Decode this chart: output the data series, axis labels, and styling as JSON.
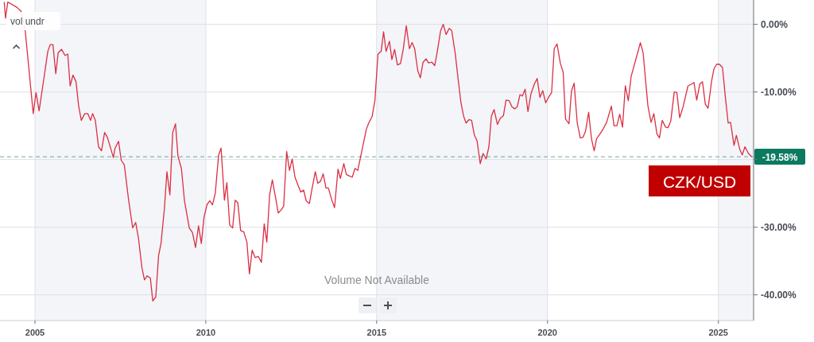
{
  "chart_data": {
    "type": "line",
    "x": [
      "2004-02-07",
      "2004-02-21",
      "2004-03-16",
      "2004-04-28",
      "2004-06-24",
      "2004-08-07",
      "2004-09-20",
      "2004-10-28",
      "2004-12-13",
      "2005-01-12",
      "2005-02-14",
      "2005-04-05",
      "2005-05-18",
      "2005-06-13",
      "2005-07-12",
      "2005-08-11",
      "2005-09-06",
      "2005-10-12",
      "2005-11-18",
      "2005-12-17",
      "2006-01-12",
      "2006-02-11",
      "2006-03-16",
      "2006-04-12",
      "2006-05-11",
      "2006-06-17",
      "2006-07-19",
      "2006-08-18",
      "2006-09-09",
      "2006-10-08",
      "2006-11-11",
      "2006-12-13",
      "2007-01-15",
      "2007-02-14",
      "2007-04-19",
      "2007-05-07",
      "2007-06-13",
      "2007-07-12",
      "2007-08-14",
      "2007-09-27",
      "2007-11-11",
      "2007-12-13",
      "2008-01-12",
      "2008-02-18",
      "2008-03-16",
      "2008-04-12",
      "2008-05-18",
      "2008-06-13",
      "2008-07-15",
      "2008-08-14",
      "2008-09-09",
      "2008-10-15",
      "2008-11-11",
      "2008-12-13",
      "2009-01-12",
      "2009-02-11",
      "2009-03-09",
      "2009-04-15",
      "2009-05-18",
      "2009-07-08",
      "2009-08-11",
      "2009-09-13",
      "2009-10-15",
      "2009-11-14",
      "2009-12-13",
      "2010-01-15",
      "2010-02-14",
      "2010-03-13",
      "2010-04-12",
      "2010-05-18",
      "2010-06-13",
      "2010-07-19",
      "2010-08-14",
      "2010-09-13",
      "2010-10-15",
      "2010-11-11",
      "2010-12-09",
      "2011-01-08",
      "2011-02-11",
      "2011-03-16",
      "2011-04-12",
      "2011-05-11",
      "2011-06-13",
      "2011-07-15",
      "2011-08-18",
      "2011-09-17",
      "2011-10-15",
      "2011-11-14",
      "2011-12-13",
      "2012-01-15",
      "2012-02-14",
      "2012-03-13",
      "2012-04-12",
      "2012-05-14",
      "2012-06-13",
      "2012-07-12",
      "2012-08-11",
      "2012-09-13",
      "2012-10-12",
      "2012-11-11",
      "2012-12-09",
      "2013-01-12",
      "2013-02-11",
      "2013-03-16",
      "2013-04-12",
      "2013-05-11",
      "2013-06-09",
      "2013-07-08",
      "2013-08-03",
      "2013-09-09",
      "2013-10-08",
      "2013-11-14",
      "2013-12-09",
      "2014-01-15",
      "2014-02-11",
      "2014-03-13",
      "2014-04-15",
      "2014-05-14",
      "2014-06-13",
      "2014-07-15",
      "2014-08-14",
      "2014-09-13",
      "2014-10-08",
      "2014-11-14",
      "2014-12-13",
      "2015-01-15",
      "2015-02-18",
      "2015-03-16",
      "2015-04-12",
      "2015-05-18",
      "2015-06-13",
      "2015-07-12",
      "2015-08-11",
      "2015-09-13",
      "2015-10-12",
      "2015-11-14",
      "2015-12-17",
      "2016-01-15",
      "2016-02-11",
      "2016-03-16",
      "2016-04-12",
      "2016-05-11",
      "2016-06-13",
      "2016-07-08",
      "2016-08-14",
      "2016-09-13",
      "2016-10-08",
      "2016-11-14",
      "2016-12-13",
      "2017-01-12",
      "2017-02-14",
      "2017-03-13",
      "2017-04-19",
      "2017-05-21",
      "2017-06-20",
      "2017-07-19",
      "2017-08-14",
      "2017-09-13",
      "2017-10-12",
      "2017-11-11",
      "2017-12-09",
      "2018-01-12",
      "2018-02-11",
      "2018-03-16",
      "2018-04-15",
      "2018-05-11",
      "2018-06-09",
      "2018-07-15",
      "2018-08-14",
      "2018-09-17",
      "2018-10-15",
      "2018-11-18",
      "2018-12-17",
      "2019-01-15",
      "2019-02-11",
      "2019-03-13",
      "2019-04-08",
      "2019-05-07",
      "2019-06-06",
      "2019-07-08",
      "2019-08-14",
      "2019-09-13",
      "2019-10-12",
      "2019-11-11",
      "2019-12-13",
      "2020-01-12",
      "2020-02-14",
      "2020-03-13",
      "2020-04-12",
      "2020-05-18",
      "2020-06-17",
      "2020-07-12",
      "2020-08-18",
      "2020-09-13",
      "2020-10-12",
      "2020-11-14",
      "2020-12-17",
      "2021-01-15",
      "2021-02-11",
      "2021-03-16",
      "2021-04-15",
      "2021-05-14",
      "2021-06-09",
      "2021-07-15",
      "2021-08-21",
      "2021-09-24",
      "2021-11-14",
      "2021-12-13",
      "2022-01-12",
      "2022-02-11",
      "2022-03-13",
      "2022-04-12",
      "2022-05-14",
      "2022-06-13",
      "2022-08-18",
      "2022-09-20",
      "2022-10-19",
      "2022-12-09",
      "2023-01-12",
      "2023-02-11",
      "2023-03-16",
      "2023-04-12",
      "2023-05-11",
      "2023-06-17",
      "2023-07-12",
      "2023-08-11",
      "2023-09-17",
      "2023-10-15",
      "2023-11-14",
      "2023-12-20",
      "2024-02-11",
      "2024-03-13",
      "2024-04-15",
      "2024-05-14",
      "2024-06-17",
      "2024-07-15",
      "2024-08-14",
      "2024-09-13",
      "2024-10-19",
      "2024-11-14",
      "2024-12-13",
      "2025-01-12",
      "2025-02-14",
      "2025-03-16",
      "2025-04-15",
      "2025-05-11",
      "2025-06-17",
      "2025-07-12",
      "2025-08-18",
      "2025-09-13",
      "2025-10-12",
      "2025-11-18",
      "2025-12-24"
    ],
    "series": [
      {
        "name": "CZK/USD",
        "color": "#dc2f43",
        "values": [
          3.3,
          0.9,
          3.3,
          null,
          2.5,
          1.9,
          -1.1,
          -6.6,
          -13.2,
          -10.1,
          -12.8,
          -8.1,
          -4.0,
          -3.0,
          -3.0,
          -7.3,
          -4.2,
          -3.7,
          -4.6,
          -4.4,
          -9.1,
          -7.5,
          -8.5,
          -12.0,
          -14.2,
          -13.2,
          -13.2,
          -14.2,
          -13.2,
          -14.2,
          -18.1,
          -18.7,
          -16.0,
          -16.7,
          -19.7,
          -18.3,
          -17.3,
          -20.1,
          -20.8,
          -25.8,
          -30.1,
          -29.3,
          -31.6,
          -36.0,
          -37.8,
          -37.2,
          -37.5,
          -40.9,
          -40.3,
          -34.2,
          -32.4,
          -27.3,
          -21.8,
          -25.2,
          -16.0,
          -14.7,
          -19.5,
          -21.3,
          -26.1,
          -30.1,
          -30.8,
          -33.0,
          -29.8,
          -32.4,
          -28.5,
          -26.6,
          -26.1,
          -26.7,
          -25.0,
          -19.3,
          -18.3,
          -26.0,
          -23.4,
          -29.7,
          -30.1,
          -26.0,
          -26.4,
          -30.5,
          -30.7,
          -32.2,
          -36.9,
          -33.4,
          -34.5,
          -34.3,
          -35.2,
          -29.5,
          -32.2,
          -25.2,
          -23.0,
          -25.5,
          -27.9,
          -27.5,
          -26.9,
          -18.8,
          -21.6,
          -19.9,
          -22.6,
          -23.8,
          -24.8,
          -24.5,
          -26.1,
          -26.5,
          -24.2,
          -21.8,
          -23.5,
          -23.2,
          -22.1,
          -24.2,
          -24.2,
          -26.0,
          -27.1,
          -21.4,
          -22.8,
          -20.6,
          -22.2,
          -22.4,
          -22.6,
          -21.3,
          -21.6,
          -19.5,
          -17.5,
          -15.5,
          -14.6,
          -13.6,
          -11.3,
          -4.4,
          -4.0,
          -1.1,
          -4.0,
          -2.5,
          -5.2,
          -3.7,
          -6.0,
          -5.8,
          -3.7,
          -0.2,
          -3.6,
          -2.7,
          -3.6,
          -6.9,
          -7.9,
          -5.6,
          -5.1,
          -5.7,
          -5.6,
          -6.1,
          -4.2,
          -1.0,
          0,
          -1.5,
          -0.6,
          -0.9,
          -4.2,
          -8.1,
          -11.6,
          -13.6,
          -14.6,
          -14.1,
          -14.2,
          -16.4,
          -17.2,
          -20.6,
          -19.1,
          -19.9,
          -18.1,
          -13.6,
          -12.6,
          -14.8,
          -13.9,
          -13.5,
          -11.2,
          -11.3,
          -12.2,
          -12.5,
          -12.2,
          -10.4,
          -10.6,
          -9.6,
          -12.9,
          -10.3,
          -8.8,
          -8.0,
          -10.8,
          -9.8,
          -11.6,
          -10.8,
          -10.1,
          -3.6,
          -2.9,
          -5.8,
          -7.1,
          -14.0,
          -14.7,
          -9.9,
          -8.7,
          -14.6,
          -16.8,
          -16.7,
          -15.8,
          -13.0,
          -16.9,
          -18.7,
          -16.9,
          -16.2,
          -15.4,
          -14.5,
          -12.1,
          -15.0,
          -15.0,
          -13.3,
          -15.2,
          -9.1,
          -11.3,
          -7.7,
          -4.4,
          -2.7,
          -4.2,
          -12.0,
          -14.5,
          -13.2,
          -16.2,
          -16.8,
          -14.2,
          -15.2,
          -15.3,
          -14.3,
          -10.0,
          -10.1,
          -13.8,
          -12.2,
          -9.1,
          -8.9,
          -8.6,
          -11.2,
          -8.8,
          -8.5,
          -11.8,
          -12.4,
          -8.5,
          -6.6,
          -5.9,
          -5.9,
          -6.4,
          -10.7,
          -14.6,
          -14.5,
          -17.9,
          -16.4,
          -18.5,
          -19.3,
          -18.1,
          -19.1,
          -19.6
        ]
      }
    ],
    "xlim": [
      "2003-12-24",
      "2026-01-12"
    ],
    "xticks": [
      "2005",
      "2010",
      "2015",
      "2020",
      "2025"
    ],
    "ylim": [
      -43.8,
      3.6
    ],
    "yticks": [
      {
        "value": 0,
        "label": "0.00%"
      },
      {
        "value": -10,
        "label": "-10.00%"
      },
      {
        "value": -20,
        "label": null
      },
      {
        "value": -30,
        "label": "-30.00%"
      },
      {
        "value": -40,
        "label": "-40.00%"
      }
    ],
    "grid": true,
    "legend": false,
    "ref_lines": [
      {
        "axis": "y",
        "value": -19.58,
        "label": "-19.58%",
        "color": "#0b7a5e",
        "line_style": "dashed"
      }
    ],
    "bands": [
      {
        "axis": "x",
        "from": "2005",
        "to": "2010",
        "color": "#f3f5f9"
      },
      {
        "axis": "x",
        "from": "2015",
        "to": "2020",
        "color": "#f3f5f9"
      },
      {
        "axis": "x",
        "from": "2025",
        "to": "2026-01-12",
        "color": "#f3f5f9"
      }
    ],
    "annotations": [
      "vol undr",
      "Volume Not Available"
    ]
  }
}
